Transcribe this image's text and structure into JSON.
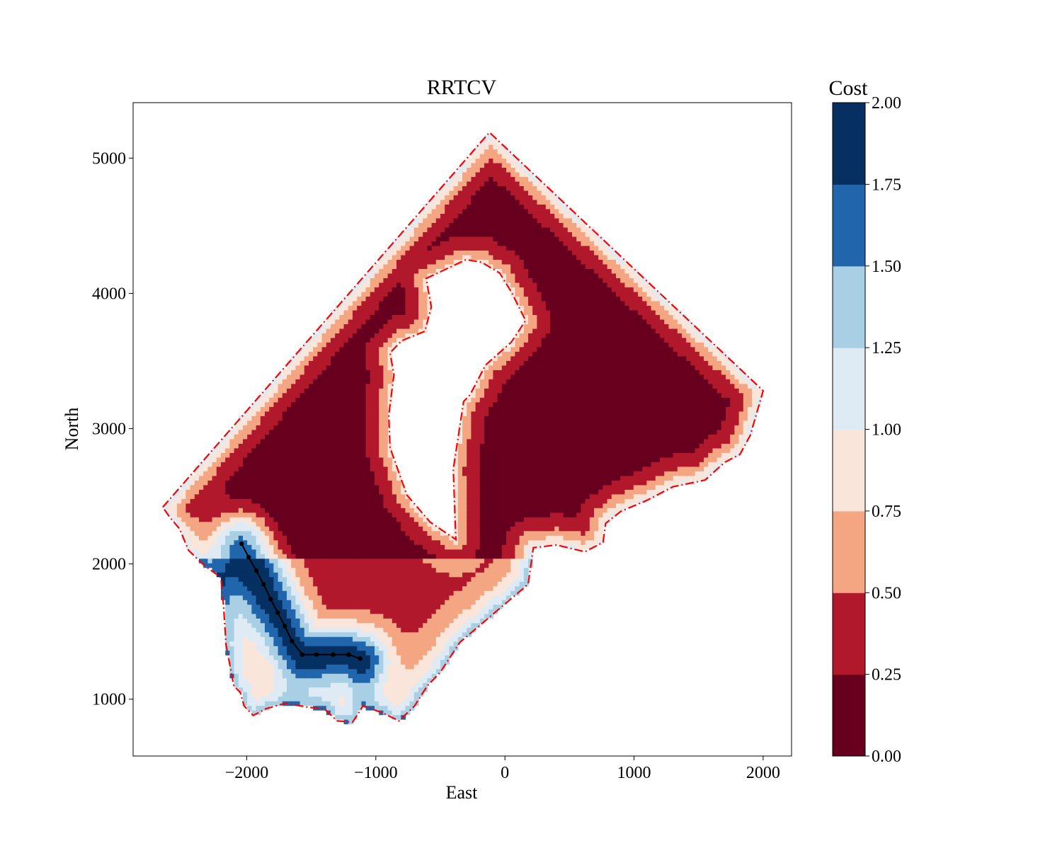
{
  "chart_data": {
    "type": "contour",
    "title": "RRTCV",
    "xlabel": "East",
    "ylabel": "North",
    "xlim": [
      -2880,
      2220
    ],
    "ylim": [
      580,
      5410
    ],
    "xticks": [
      -2000,
      -1000,
      0,
      1000,
      2000
    ],
    "xtick_labels": [
      "−2000",
      "−1000",
      "0",
      "1000",
      "2000"
    ],
    "yticks": [
      1000,
      2000,
      3000,
      4000,
      5000
    ],
    "ytick_labels": [
      "1000",
      "2000",
      "3000",
      "4000",
      "5000"
    ],
    "grid": false,
    "colorbar": {
      "label": "Cost",
      "range": [
        0,
        2
      ],
      "ticks": [
        0,
        0.25,
        0.5,
        0.75,
        1.0,
        1.25,
        1.5,
        1.75,
        2.0
      ],
      "tick_labels": [
        "0.00",
        "0.25",
        "0.50",
        "0.75",
        "1.00",
        "1.25",
        "1.50",
        "1.75",
        "2.00"
      ],
      "colors": [
        "#67001f",
        "#b2182b",
        "#f4a582",
        "#fae5da",
        "#dfebf4",
        "#a8cfe4",
        "#2166ac",
        "#053061"
      ]
    },
    "boundary": {
      "style": "dash-dot",
      "color": "#ff0000",
      "outer": [
        [
          -2650,
          2420
        ],
        [
          -120,
          5190
        ],
        [
          2000,
          3280
        ],
        [
          1900,
          2950
        ],
        [
          1820,
          2810
        ],
        [
          1700,
          2750
        ],
        [
          1550,
          2620
        ],
        [
          1300,
          2570
        ],
        [
          1100,
          2470
        ],
        [
          900,
          2390
        ],
        [
          780,
          2300
        ],
        [
          760,
          2160
        ],
        [
          620,
          2090
        ],
        [
          400,
          2140
        ],
        [
          220,
          2120
        ],
        [
          180,
          1850
        ],
        [
          -350,
          1420
        ],
        [
          -500,
          1200
        ],
        [
          -600,
          1100
        ],
        [
          -700,
          950
        ],
        [
          -820,
          840
        ],
        [
          -950,
          900
        ],
        [
          -1100,
          950
        ],
        [
          -1180,
          830
        ],
        [
          -1300,
          840
        ],
        [
          -1400,
          930
        ],
        [
          -1520,
          940
        ],
        [
          -1700,
          970
        ],
        [
          -1850,
          930
        ],
        [
          -1950,
          880
        ],
        [
          -2020,
          950
        ],
        [
          -2050,
          1050
        ],
        [
          -2100,
          1100
        ],
        [
          -2160,
          1400
        ],
        [
          -2180,
          1700
        ],
        [
          -2200,
          1900
        ],
        [
          -2330,
          1990
        ],
        [
          -2450,
          2100
        ],
        [
          -2520,
          2260
        ],
        [
          -2600,
          2350
        ]
      ],
      "inner": [
        [
          -610,
          4110
        ],
        [
          -300,
          4250
        ],
        [
          -180,
          4230
        ],
        [
          -40,
          4150
        ],
        [
          50,
          4010
        ],
        [
          160,
          3800
        ],
        [
          50,
          3640
        ],
        [
          -150,
          3470
        ],
        [
          -270,
          3250
        ],
        [
          -320,
          3200
        ],
        [
          -400,
          2700
        ],
        [
          -380,
          2180
        ],
        [
          -580,
          2310
        ],
        [
          -760,
          2510
        ],
        [
          -890,
          2860
        ],
        [
          -900,
          3100
        ],
        [
          -860,
          3400
        ],
        [
          -890,
          3560
        ],
        [
          -800,
          3650
        ],
        [
          -620,
          3720
        ],
        [
          -570,
          3900
        ]
      ]
    },
    "path": {
      "color": "#000000",
      "x": [
        -2040,
        -1985,
        -1925,
        -1870,
        -1815,
        -1760,
        -1705,
        -1650,
        -1570,
        -1460,
        -1330,
        -1210,
        -1120
      ],
      "y": [
        2150,
        2050,
        1950,
        1850,
        1740,
        1640,
        1540,
        1430,
        1330,
        1330,
        1330,
        1330,
        1300
      ]
    }
  }
}
